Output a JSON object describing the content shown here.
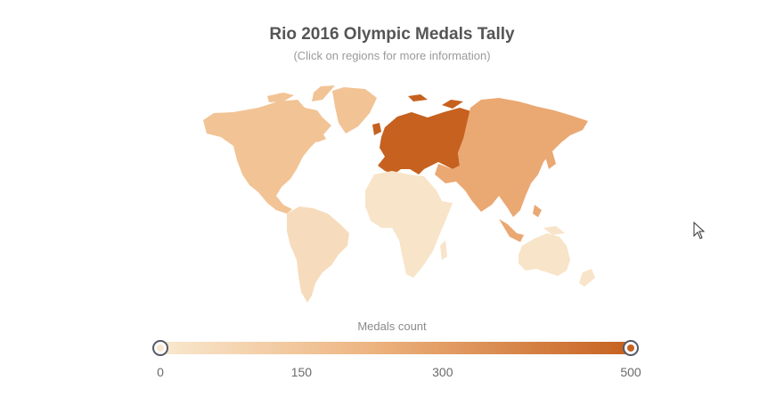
{
  "title": "Rio 2016 Olympic Medals Tally",
  "subtitle": "(Click on regions for more information)",
  "legend": {
    "title": "Medals count",
    "min": 0,
    "max": 500,
    "ticks": [
      "0",
      "150",
      "300",
      "500"
    ],
    "range_low": 0,
    "range_high": 500,
    "color_low": "#f9e8cf",
    "color_high": "#c6611f"
  },
  "regions": [
    {
      "id": "north-america",
      "name": "North America",
      "color": "#f2c394"
    },
    {
      "id": "south-america",
      "name": "South America",
      "color": "#f6dcbc"
    },
    {
      "id": "europe",
      "name": "Europe",
      "color": "#c6611f"
    },
    {
      "id": "africa",
      "name": "Africa",
      "color": "#f8e4c8"
    },
    {
      "id": "asia",
      "name": "Asia",
      "color": "#eaa873"
    },
    {
      "id": "oceania",
      "name": "Oceania",
      "color": "#f8e4c8"
    }
  ]
}
